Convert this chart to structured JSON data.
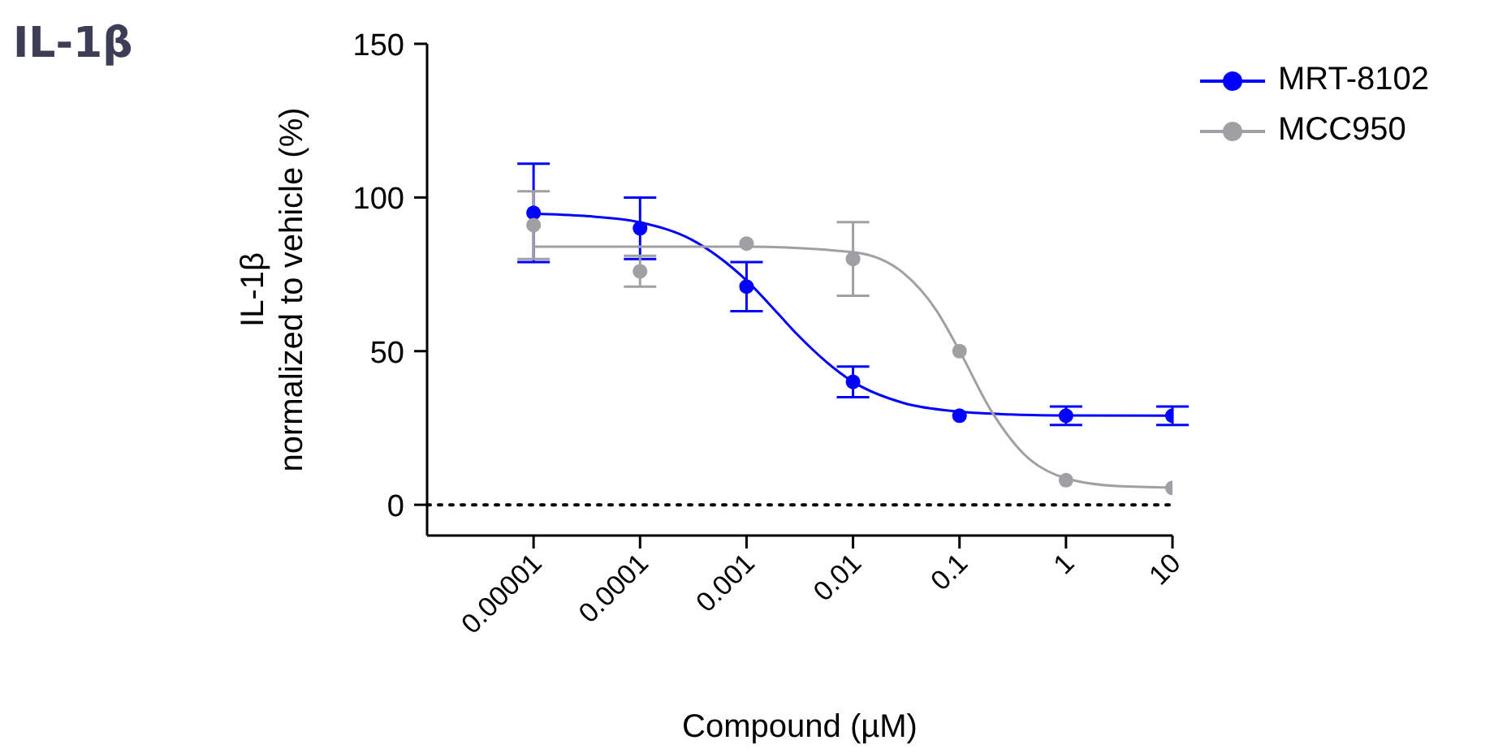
{
  "chart_data": {
    "type": "scatter",
    "title": "IL-1β",
    "xlabel": "Compound (µM)",
    "ylabel": "IL-1β\nnormalized to vehicle (%)",
    "log": "x",
    "xlim": [
      1e-06,
      10
    ],
    "xticks": [
      {
        "value": 1e-05,
        "label": "0.00001"
      },
      {
        "value": 0.0001,
        "label": "0.0001"
      },
      {
        "value": 0.001,
        "label": "0.001"
      },
      {
        "value": 0.01,
        "label": "0.01"
      },
      {
        "value": 0.1,
        "label": "0.1"
      },
      {
        "value": 1,
        "label": "1"
      },
      {
        "value": 10,
        "label": "10"
      }
    ],
    "ylim": [
      -10,
      150
    ],
    "yticks": [
      0,
      50,
      100,
      150
    ],
    "grid": false,
    "legend": "top right",
    "marker": "circle",
    "ref_lines": [
      {
        "axis": "y",
        "value": 0,
        "line_style": "dotted",
        "color": "#000000"
      }
    ],
    "series": [
      {
        "name": "MRT-8102",
        "type": "scatter",
        "color": "#0000ff",
        "x": [
          1e-05,
          0.0001,
          0.001,
          0.01,
          0.1,
          1,
          10
        ],
        "values": [
          95,
          90,
          71,
          40,
          29,
          29,
          29
        ],
        "errors": [
          16,
          10,
          8,
          5,
          null,
          3,
          3
        ]
      },
      {
        "name": "MCC950",
        "type": "scatter",
        "color": "#a0a0a4",
        "x": [
          1e-05,
          0.0001,
          0.001,
          0.01,
          0.1,
          1,
          10
        ],
        "values": [
          91,
          76,
          85,
          80,
          50,
          8,
          5.5
        ],
        "errors": [
          11,
          5,
          null,
          12,
          null,
          null,
          null
        ]
      },
      {
        "type": "line",
        "marker": "none",
        "color": "#0000ff",
        "x": [
          1e-05,
          3e-05,
          0.0001,
          0.0003,
          0.001,
          0.002,
          0.003,
          0.01,
          0.03,
          0.1,
          0.3,
          1,
          10
        ],
        "values": [
          94.7,
          94,
          91.9,
          86.4,
          73,
          62,
          55.4,
          40,
          33.1,
          30.3,
          29.4,
          29.1,
          29
        ]
      },
      {
        "type": "line",
        "marker": "none",
        "color": "#a0a0a4",
        "x": [
          1e-05,
          0.001,
          0.01,
          0.03,
          0.06,
          0.1,
          0.2,
          0.4,
          1,
          3,
          10
        ],
        "values": [
          84,
          84,
          82.2,
          75.3,
          63.5,
          50.1,
          30.4,
          16.6,
          8.6,
          6.1,
          5.6
        ]
      }
    ]
  }
}
